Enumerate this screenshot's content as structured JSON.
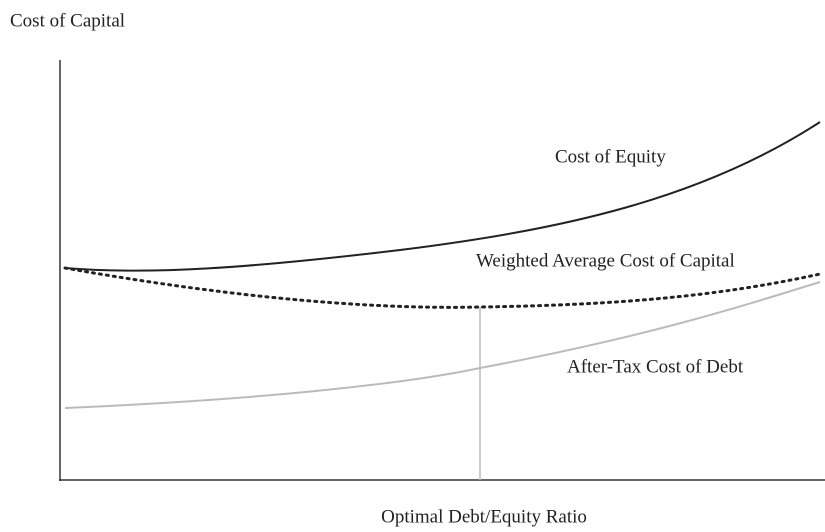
{
  "title": "Cost of Capital",
  "x_label": "Optimal Debt/Equity Ratio",
  "curves": [
    {
      "label": "Cost of Equity"
    },
    {
      "label": "Weighted Average Cost of Capital"
    },
    {
      "label": "After-Tax Cost of Debt"
    }
  ]
}
